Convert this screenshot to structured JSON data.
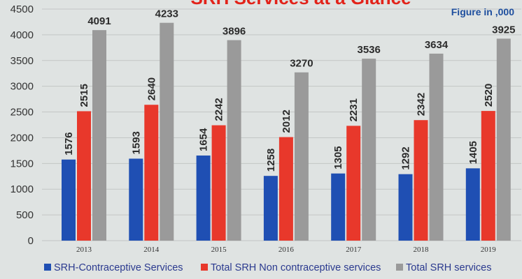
{
  "chart_data": {
    "type": "bar",
    "title": "SRH Services at a Glance",
    "note": "Figure in ,000",
    "categories": [
      "2013",
      "2014",
      "2015",
      "2016",
      "2017",
      "2018",
      "2019"
    ],
    "ylim": [
      0,
      4500
    ],
    "yticks": [
      0,
      500,
      1000,
      1500,
      2000,
      2500,
      3000,
      3500,
      4000,
      4500
    ],
    "grid": true,
    "legend_position": "bottom",
    "series": [
      {
        "name": "SRH-Contraceptive Services",
        "color": "#1f4fb3",
        "values": [
          1576,
          1593,
          1654,
          1258,
          1305,
          1292,
          1405
        ]
      },
      {
        "name": "Total SRH Non contraceptive services",
        "color": "#e8382b",
        "values": [
          2515,
          2640,
          2242,
          2012,
          2231,
          2342,
          2520
        ]
      },
      {
        "name": "Total SRH  services",
        "color": "#9a9a9a",
        "values": [
          4091,
          4233,
          3896,
          3270,
          3536,
          3634,
          3925
        ]
      }
    ]
  }
}
